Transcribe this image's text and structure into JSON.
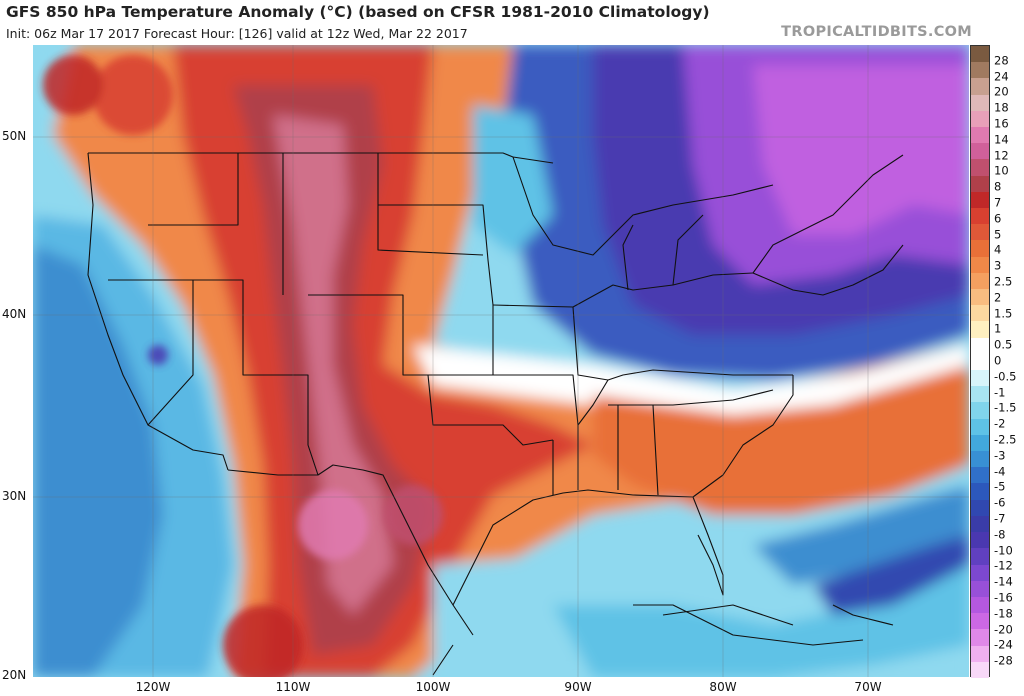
{
  "header": {
    "title": "GFS 850 hPa Temperature Anomaly (°C) (based on CFSR 1981-2010 Climatology)",
    "subtitle": "Init: 06z Mar 17 2017   Forecast Hour: [126]   valid at 12z Wed, Mar 22 2017",
    "brand": "TROPICALTIDBITS.COM"
  },
  "map": {
    "lat_labels": [
      "50N",
      "40N",
      "30N",
      "20N"
    ],
    "lon_labels": [
      "120W",
      "110W",
      "100W",
      "90W",
      "80W",
      "70W"
    ]
  },
  "colorbar": {
    "labels": [
      "28",
      "24",
      "20",
      "18",
      "16",
      "14",
      "12",
      "10",
      "8",
      "7",
      "6",
      "5",
      "4",
      "3",
      "2.5",
      "2",
      "1.5",
      "1",
      "0.5",
      "0",
      "-0.5",
      "-1",
      "-1.5",
      "-2",
      "-2.5",
      "-3",
      "-4",
      "-5",
      "-6",
      "-7",
      "-8",
      "-10",
      "-12",
      "-14",
      "-16",
      "-18",
      "-20",
      "-24",
      "-28"
    ],
    "colors": [
      "#7a5a40",
      "#a07a60",
      "#c8a090",
      "#e0b8b8",
      "#e8a0b8",
      "#e07ab0",
      "#d0609a",
      "#c0506e",
      "#b0404a",
      "#c02828",
      "#d84030",
      "#e05838",
      "#e87038",
      "#f08848",
      "#f4a060",
      "#f8bc80",
      "#fcd8a0",
      "#fff0c0",
      "#ffffff",
      "#ffffff",
      "#d8f4fa",
      "#a8e4f2",
      "#80d4ec",
      "#5ec2e6",
      "#42a8dc",
      "#3890d4",
      "#3070c8",
      "#2c58bc",
      "#3048b0",
      "#3a3ca8",
      "#4a38b0",
      "#6040c0",
      "#7c48d0",
      "#9850d8",
      "#b458e0",
      "#cc68e4",
      "#e088e8",
      "#f0b0f0",
      "#f8d8f8"
    ]
  }
}
